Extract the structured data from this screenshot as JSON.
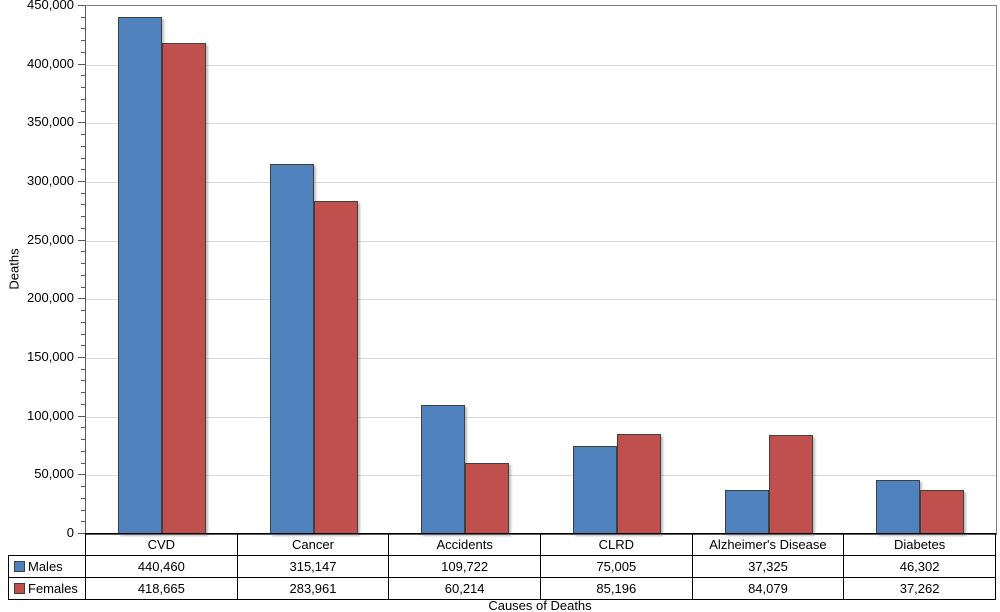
{
  "chart_data": {
    "type": "bar",
    "title": "",
    "xlabel": "Causes of Deaths",
    "ylabel": "Deaths",
    "categories": [
      "CVD",
      "Cancer",
      "Accidents",
      "CLRD",
      "Alzheimer's Disease",
      "Diabetes"
    ],
    "series": [
      {
        "name": "Males",
        "color": "#4F81BD",
        "values": [
          440460,
          315147,
          109722,
          75005,
          37325,
          46302
        ]
      },
      {
        "name": "Females",
        "color": "#C0504D",
        "values": [
          418665,
          283961,
          60214,
          85196,
          84079,
          37262
        ]
      }
    ],
    "ylim": [
      0,
      450000
    ],
    "ytick_interval": 50000,
    "yminor_tick_interval": 10000,
    "ytick_labels": [
      "0",
      "50,000",
      "100,000",
      "150,000",
      "200,000",
      "250,000",
      "300,000",
      "350,000",
      "400,000",
      "450,000"
    ],
    "grid": true,
    "legend_position": "left-of-data-table",
    "data_table_shown": true
  },
  "colors": {
    "males": "#4F81BD",
    "females": "#C0504D",
    "bar_border": "#3F3F3F",
    "gridline": "#D9D9D9",
    "axis": "#595959",
    "plot_border": "#808080",
    "table_border": "#000000",
    "text": "#000000",
    "background": "#FFFFFF"
  }
}
